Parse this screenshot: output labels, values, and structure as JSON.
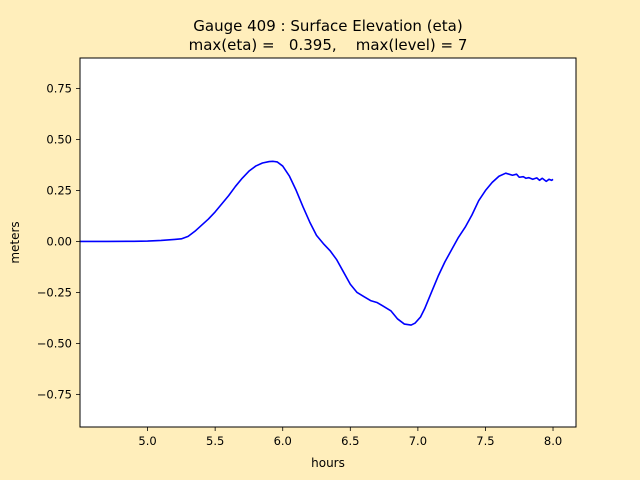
{
  "figure": {
    "background": "#ffeebb",
    "axes_background": "#ffffff"
  },
  "chart_data": {
    "type": "line",
    "title_line1": "Gauge 409 : Surface Elevation (eta)",
    "title_line2": "max(eta) =   0.395,    max(level) = 7",
    "xlabel": "hours",
    "ylabel": "meters",
    "xlim": [
      4.5,
      8.17
    ],
    "ylim": [
      -0.91,
      0.9
    ],
    "xticks": [
      5.0,
      5.5,
      6.0,
      6.5,
      7.0,
      7.5,
      8.0
    ],
    "xtick_labels": [
      "5.0",
      "5.5",
      "6.0",
      "6.5",
      "7.0",
      "7.5",
      "8.0"
    ],
    "yticks": [
      0.75,
      0.5,
      0.25,
      0.0,
      -0.25,
      -0.5,
      -0.75
    ],
    "ytick_labels": [
      "0.75",
      "0.50",
      "0.25",
      "0.00",
      "−0.25",
      "−0.50",
      "−0.75"
    ],
    "grid": false,
    "series": [
      {
        "color": "#0000ff",
        "x": [
          4.5,
          4.7,
          4.9,
          5.0,
          5.1,
          5.2,
          5.25,
          5.3,
          5.35,
          5.4,
          5.45,
          5.5,
          5.55,
          5.6,
          5.65,
          5.7,
          5.75,
          5.8,
          5.85,
          5.9,
          5.93,
          5.96,
          6.0,
          6.05,
          6.1,
          6.15,
          6.2,
          6.25,
          6.3,
          6.35,
          6.4,
          6.45,
          6.5,
          6.55,
          6.6,
          6.65,
          6.7,
          6.75,
          6.8,
          6.85,
          6.9,
          6.95,
          6.98,
          7.02,
          7.05,
          7.1,
          7.15,
          7.2,
          7.25,
          7.3,
          7.35,
          7.4,
          7.45,
          7.5,
          7.55,
          7.6,
          7.65,
          7.7,
          7.73,
          7.75,
          7.78,
          7.8,
          7.82,
          7.85,
          7.88,
          7.9,
          7.92,
          7.95,
          7.97,
          7.99,
          8.0
        ],
        "y": [
          0.0,
          0.0,
          0.001,
          0.002,
          0.005,
          0.01,
          0.013,
          0.025,
          0.05,
          0.08,
          0.11,
          0.145,
          0.185,
          0.225,
          0.27,
          0.31,
          0.345,
          0.37,
          0.385,
          0.392,
          0.393,
          0.39,
          0.37,
          0.32,
          0.25,
          0.17,
          0.095,
          0.03,
          -0.01,
          -0.045,
          -0.09,
          -0.15,
          -0.21,
          -0.25,
          -0.27,
          -0.29,
          -0.3,
          -0.32,
          -0.34,
          -0.38,
          -0.405,
          -0.41,
          -0.4,
          -0.37,
          -0.33,
          -0.25,
          -0.17,
          -0.1,
          -0.04,
          0.02,
          0.07,
          0.13,
          0.2,
          0.25,
          0.29,
          0.32,
          0.335,
          0.325,
          0.33,
          0.315,
          0.318,
          0.31,
          0.313,
          0.305,
          0.312,
          0.3,
          0.31,
          0.295,
          0.305,
          0.3,
          0.305
        ]
      }
    ]
  }
}
